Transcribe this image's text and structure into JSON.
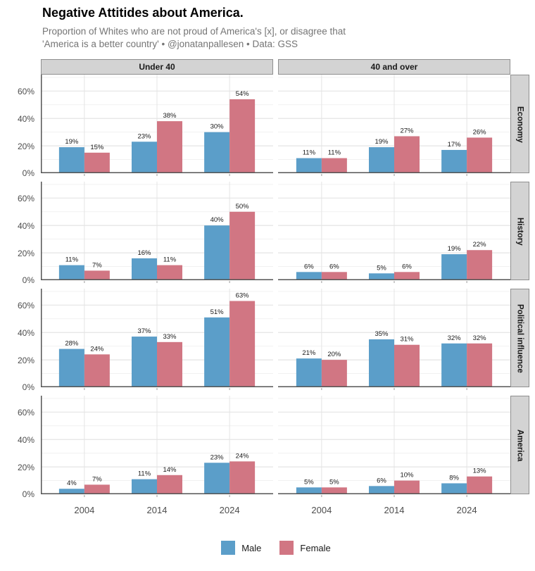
{
  "header": {
    "title": "Negative Attitides about America.",
    "subtitle_line1": "Proportion of Whites who are not proud of America's [x], or disagree that",
    "subtitle_line2": "'America is a better country' • @jonatanpallesen • Data: GSS"
  },
  "colors": {
    "male": "#5B9EC9",
    "female": "#D17683",
    "strip_bg": "#D3D3D3",
    "strip_border": "#8F8F8F",
    "axis_line": "#555555",
    "grid_major": "#E4E4E4",
    "grid_minor": "#F1F1F1",
    "tick_mark": "#999999",
    "bar_label_text": "#1A1A1A",
    "axis_text": "#4D4D4D"
  },
  "chart_data": {
    "type": "bar",
    "title": "Negative Attitides about America.",
    "subtitle": "Proportion of Whites who are not proud of America's [x], or disagree that 'America is a better country' • @jonatanpallesen • Data: GSS",
    "facet_columns": [
      "Under 40",
      "40 and over"
    ],
    "facet_rows": [
      "Economy",
      "History",
      "Political influence",
      "America"
    ],
    "categories": [
      "2004",
      "2014",
      "2024"
    ],
    "legend": [
      "Male",
      "Female"
    ],
    "legend_position": "bottom",
    "grid": true,
    "unit": "%",
    "ylim": [
      0,
      72
    ],
    "y_ticks": [
      {
        "value": 0,
        "label": "0%"
      },
      {
        "value": 20,
        "label": "20%"
      },
      {
        "value": 40,
        "label": "40%"
      },
      {
        "value": 60,
        "label": "60%"
      }
    ],
    "rows": [
      {
        "label": "Economy",
        "panels": [
          {
            "col": "Under 40",
            "male": [
              19,
              23,
              30
            ],
            "female": [
              15,
              38,
              54
            ]
          },
          {
            "col": "40 and over",
            "male": [
              11,
              19,
              17
            ],
            "female": [
              11,
              27,
              26
            ]
          }
        ]
      },
      {
        "label": "History",
        "panels": [
          {
            "col": "Under 40",
            "male": [
              11,
              16,
              40
            ],
            "female": [
              7,
              11,
              50
            ]
          },
          {
            "col": "40 and over",
            "male": [
              6,
              5,
              19
            ],
            "female": [
              6,
              6,
              22
            ]
          }
        ]
      },
      {
        "label": "Political influence",
        "panels": [
          {
            "col": "Under 40",
            "male": [
              28,
              37,
              51
            ],
            "female": [
              24,
              33,
              63
            ]
          },
          {
            "col": "40 and over",
            "male": [
              21,
              35,
              32
            ],
            "female": [
              20,
              31,
              32
            ]
          }
        ]
      },
      {
        "label": "America",
        "panels": [
          {
            "col": "Under 40",
            "male": [
              4,
              11,
              23
            ],
            "female": [
              7,
              14,
              24
            ]
          },
          {
            "col": "40 and over",
            "male": [
              5,
              6,
              8
            ],
            "female": [
              5,
              10,
              13
            ]
          }
        ]
      }
    ]
  }
}
